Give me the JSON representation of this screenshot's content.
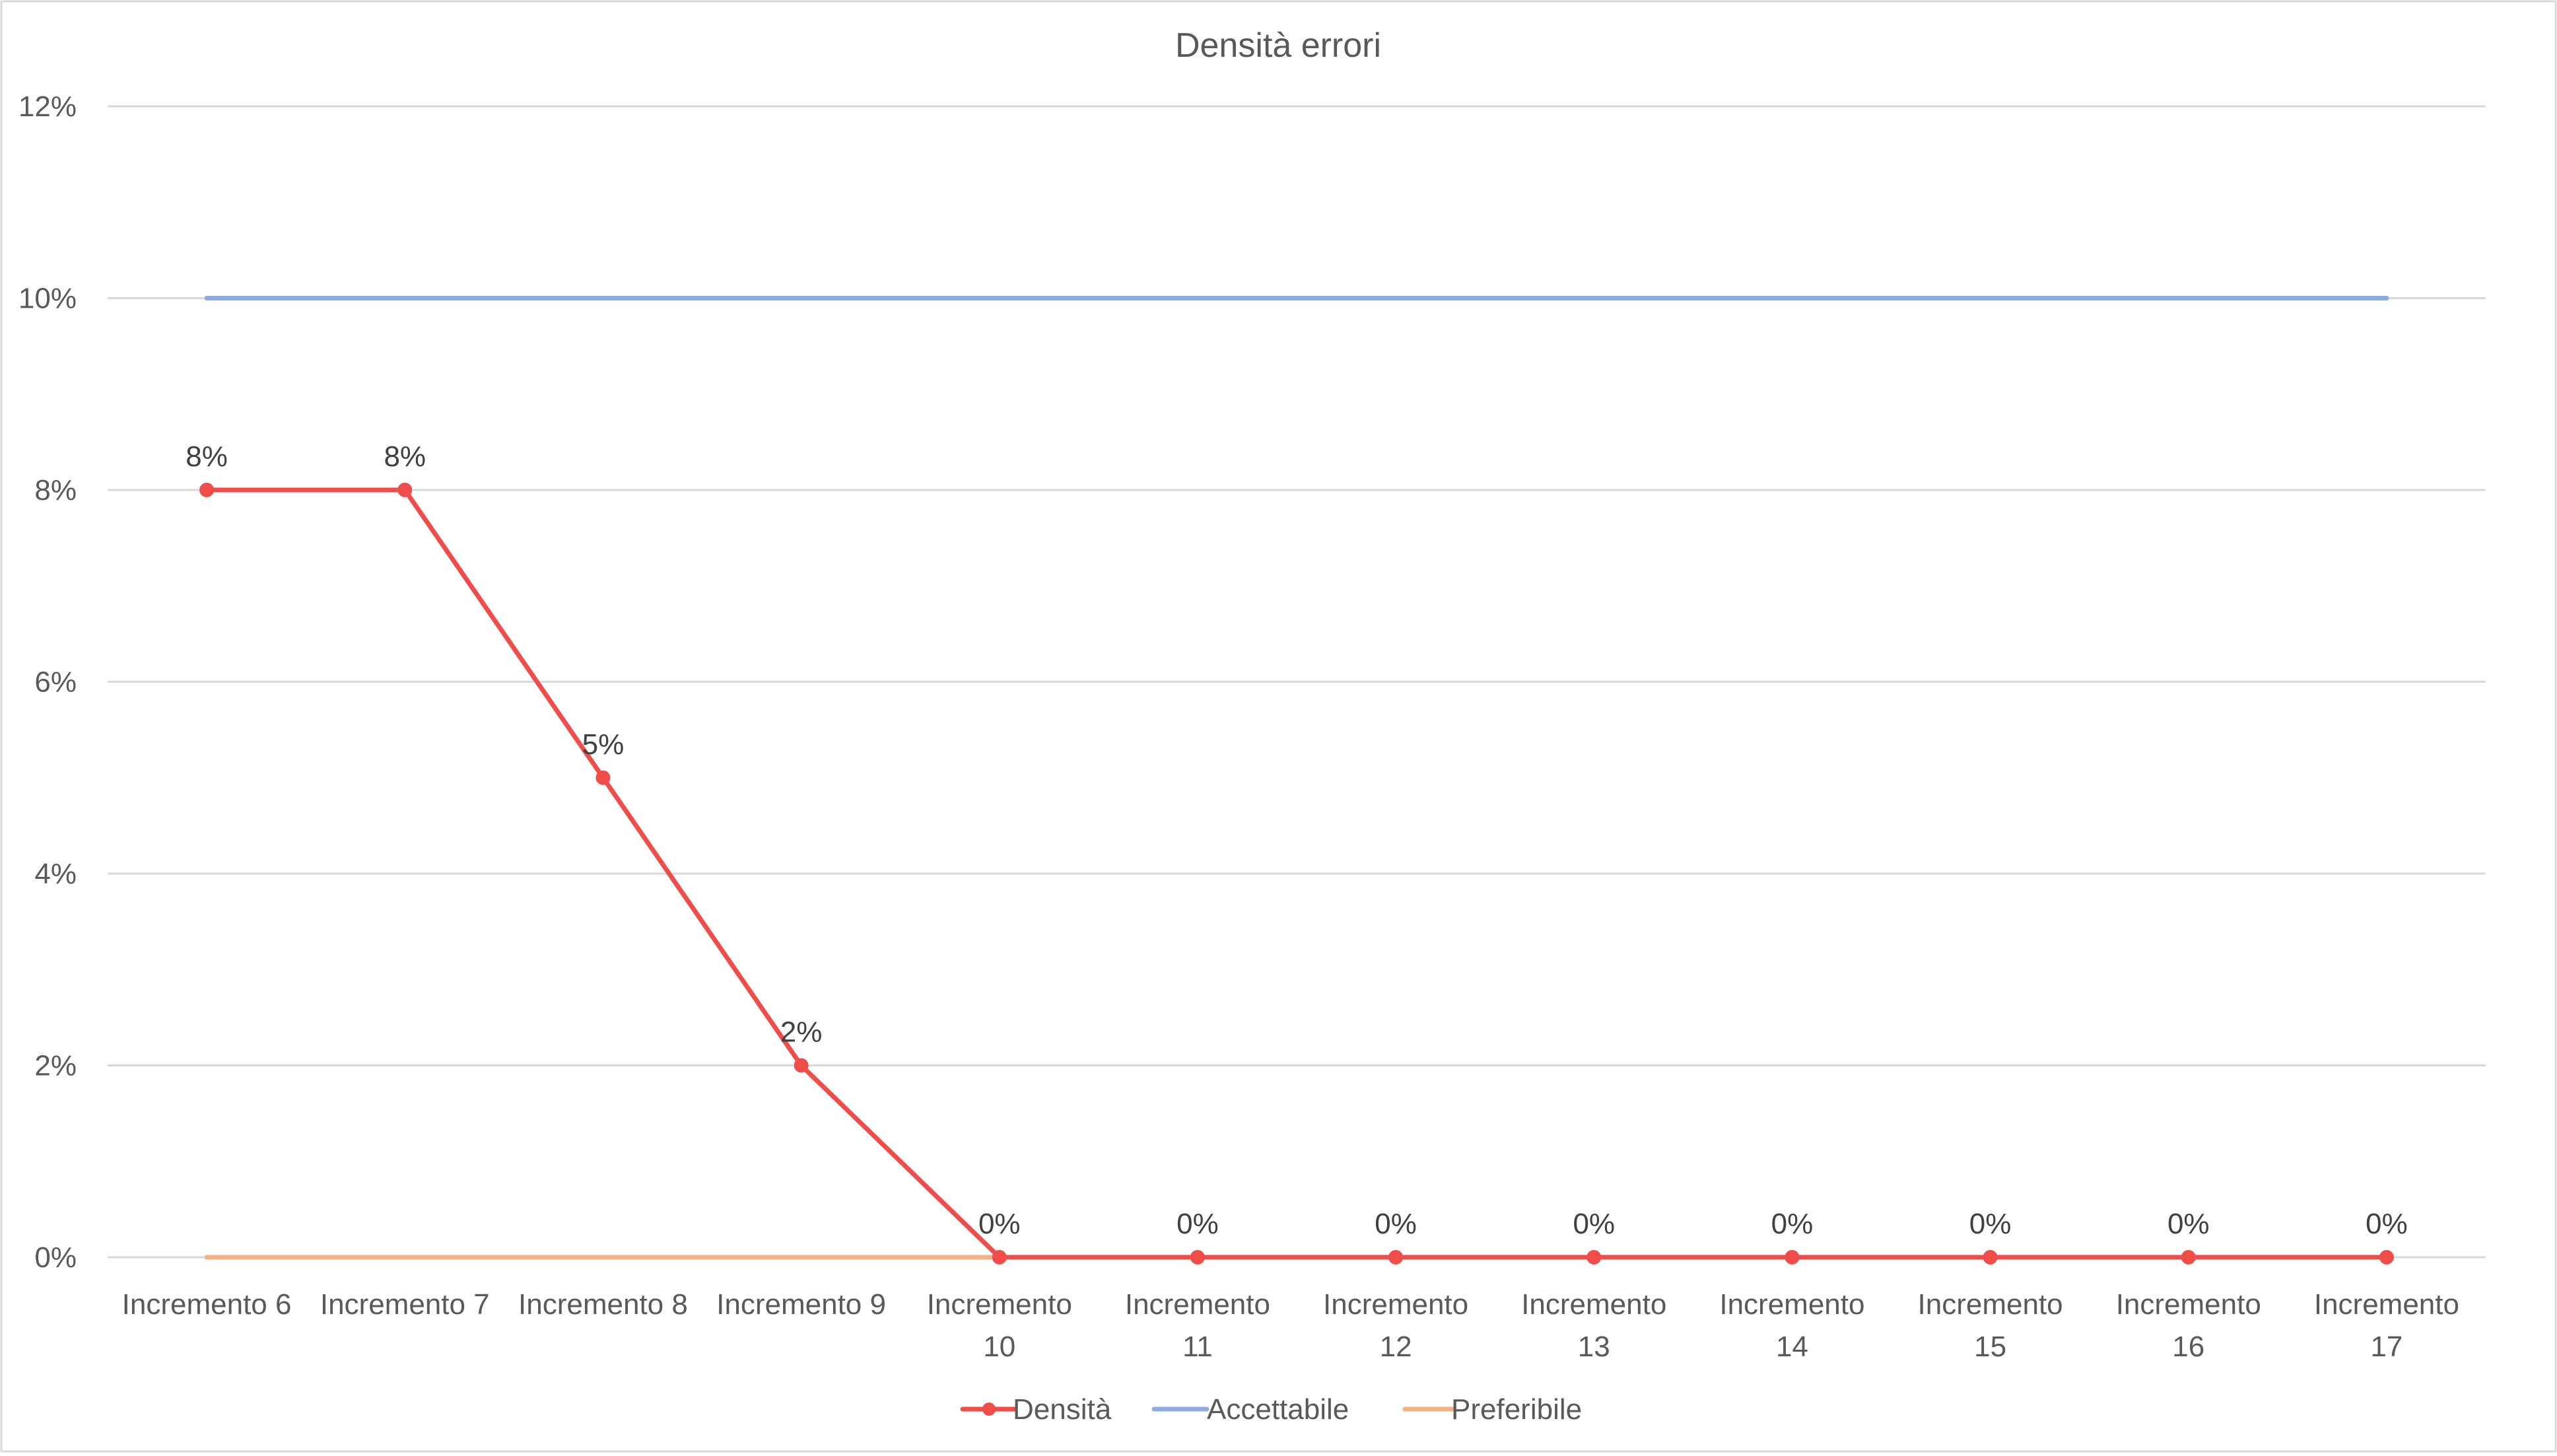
{
  "chart_data": {
    "type": "line",
    "title": "Densità errori",
    "categories": [
      [
        "Incremento 6"
      ],
      [
        "Incremento 7"
      ],
      [
        "Incremento 8"
      ],
      [
        "Incremento 9"
      ],
      [
        "Incremento",
        "10"
      ],
      [
        "Incremento",
        "11"
      ],
      [
        "Incremento",
        "12"
      ],
      [
        "Incremento",
        "13"
      ],
      [
        "Incremento",
        "14"
      ],
      [
        "Incremento",
        "15"
      ],
      [
        "Incremento",
        "16"
      ],
      [
        "Incremento",
        "17"
      ]
    ],
    "ylim": [
      0,
      12
    ],
    "yticks": [
      0,
      2,
      4,
      6,
      8,
      10,
      12
    ],
    "ytick_labels": [
      "0%",
      "2%",
      "4%",
      "6%",
      "8%",
      "10%",
      "12%"
    ],
    "grid": true,
    "legend_position": "bottom",
    "series": [
      {
        "name": "Densità",
        "color": "#f04c4a",
        "markers": true,
        "values": [
          8,
          8,
          5,
          2,
          0,
          0,
          0,
          0,
          0,
          0,
          0,
          0
        ],
        "data_labels": [
          "8%",
          "8%",
          "5%",
          "2%",
          "0%",
          "0%",
          "0%",
          "0%",
          "0%",
          "0%",
          "0%",
          "0%"
        ]
      },
      {
        "name": "Accettabile",
        "color": "#8faadc",
        "markers": false,
        "values": [
          10,
          10,
          10,
          10,
          10,
          10,
          10,
          10,
          10,
          10,
          10,
          10
        ]
      },
      {
        "name": "Preferibile",
        "color": "#f4b183",
        "markers": false,
        "values": [
          0,
          0,
          0,
          0,
          0,
          0,
          0,
          0,
          0,
          0,
          0,
          0
        ]
      }
    ]
  }
}
